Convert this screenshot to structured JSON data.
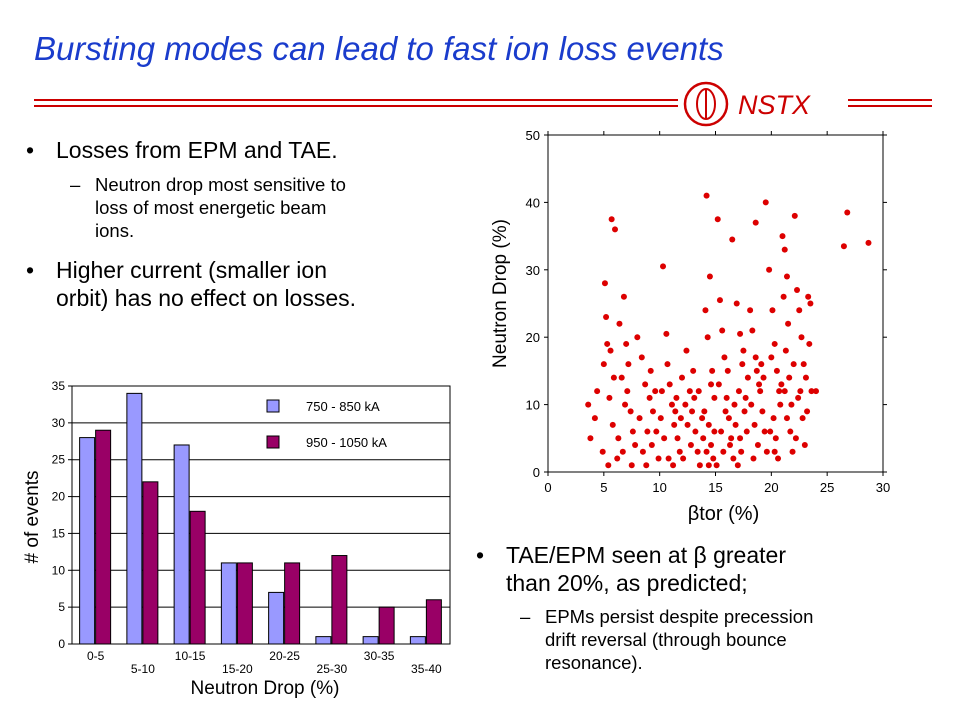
{
  "slide": {
    "title": "Bursting modes can lead to fast ion loss events",
    "logo_text": "NSTX",
    "colors": {
      "title": "#1a3ccc",
      "rule": "#cc0000",
      "series1": "#9999ff",
      "series2": "#990066",
      "scatter": "#dd0000"
    }
  },
  "bullets_top": [
    {
      "text": "Losses from EPM and TAE.",
      "sub": [
        "Neutron drop most sensitive to",
        "loss of most energetic beam",
        "ions."
      ]
    },
    {
      "text": "Higher current (smaller ion",
      "text2": "orbit) has no effect on losses."
    }
  ],
  "bullets_bottom": [
    {
      "text": "TAE/EPM seen at β greater",
      "text2": "than 20%, as predicted;",
      "sub": [
        "EPMs persist despite precession",
        "drift reversal (through bounce",
        "resonance)."
      ]
    }
  ],
  "chart_data": [
    {
      "type": "bar",
      "categories": [
        "0-5",
        "5-10",
        "10-15",
        "15-20",
        "20-25",
        "25-30",
        "30-35",
        "35-40"
      ],
      "series": [
        {
          "name": "750 - 850 kA",
          "values": [
            28,
            34,
            27,
            11,
            7,
            1,
            1,
            1
          ]
        },
        {
          "name": "950 - 1050 kA",
          "values": [
            29,
            22,
            18,
            11,
            11,
            12,
            5,
            6
          ]
        }
      ],
      "xlabel": "Neutron Drop (%)",
      "ylabel": "# of events",
      "ylim": [
        0,
        35
      ],
      "yticks": [
        0,
        5,
        10,
        15,
        20,
        25,
        30,
        35
      ],
      "grid": true,
      "legend": "top-right"
    },
    {
      "type": "scatter",
      "xlabel": "βtor (%)",
      "ylabel": "Neutron Drop (%)",
      "xlim": [
        0,
        30
      ],
      "ylim": [
        0,
        50
      ],
      "xticks": [
        0,
        5,
        10,
        15,
        20,
        25,
        30
      ],
      "yticks": [
        0,
        10,
        20,
        30,
        40,
        50
      ],
      "grid": false,
      "points": [
        [
          5.1,
          28
        ],
        [
          5.2,
          23
        ],
        [
          5.3,
          19
        ],
        [
          5.6,
          18
        ],
        [
          5.9,
          14
        ],
        [
          5.5,
          11
        ],
        [
          4.2,
          8
        ],
        [
          3.8,
          5
        ],
        [
          4.9,
          3
        ],
        [
          5.8,
          7
        ],
        [
          6.2,
          2
        ],
        [
          5.4,
          1
        ],
        [
          4.4,
          12
        ],
        [
          3.6,
          10
        ],
        [
          5.0,
          16
        ],
        [
          5.7,
          37.5
        ],
        [
          6.0,
          36
        ],
        [
          6.4,
          22
        ],
        [
          6.8,
          26
        ],
        [
          7.0,
          19
        ],
        [
          7.2,
          16
        ],
        [
          7.1,
          12
        ],
        [
          7.4,
          9
        ],
        [
          7.6,
          6
        ],
        [
          7.8,
          4
        ],
        [
          7.5,
          1
        ],
        [
          6.6,
          14
        ],
        [
          6.9,
          10
        ],
        [
          6.3,
          5
        ],
        [
          6.7,
          3
        ],
        [
          8.0,
          20
        ],
        [
          8.4,
          17
        ],
        [
          8.7,
          13
        ],
        [
          8.2,
          8
        ],
        [
          8.9,
          6
        ],
        [
          8.5,
          3
        ],
        [
          8.8,
          1
        ],
        [
          9.1,
          11
        ],
        [
          9.4,
          9
        ],
        [
          9.7,
          6
        ],
        [
          9.3,
          4
        ],
        [
          9.9,
          2
        ],
        [
          9.6,
          12
        ],
        [
          9.2,
          15
        ],
        [
          10.1,
          8
        ],
        [
          10.3,
          30.5
        ],
        [
          10.6,
          20.5
        ],
        [
          10.9,
          13
        ],
        [
          11.1,
          10
        ],
        [
          11.3,
          7
        ],
        [
          11.6,
          5
        ],
        [
          11.8,
          3
        ],
        [
          11.2,
          1
        ],
        [
          10.7,
          16
        ],
        [
          11.5,
          11
        ],
        [
          10.4,
          5
        ],
        [
          10.8,
          2
        ],
        [
          11.9,
          8
        ],
        [
          11.4,
          9
        ],
        [
          10.2,
          12
        ],
        [
          12.0,
          14
        ],
        [
          12.3,
          10
        ],
        [
          12.5,
          7
        ],
        [
          12.8,
          4
        ],
        [
          12.1,
          2
        ],
        [
          12.7,
          12
        ],
        [
          12.9,
          9
        ],
        [
          13.2,
          6
        ],
        [
          13.4,
          3
        ],
        [
          13.6,
          1
        ],
        [
          13.1,
          11
        ],
        [
          13.8,
          8
        ],
        [
          12.4,
          18
        ],
        [
          13.0,
          15
        ],
        [
          13.5,
          12
        ],
        [
          14.2,
          41
        ],
        [
          14.5,
          29
        ],
        [
          14.1,
          24
        ],
        [
          14.3,
          20
        ],
        [
          14.7,
          15
        ],
        [
          14.9,
          11
        ],
        [
          14.4,
          7
        ],
        [
          14.6,
          4
        ],
        [
          14.8,
          2
        ],
        [
          14.0,
          9
        ],
        [
          13.9,
          5
        ],
        [
          14.6,
          13
        ],
        [
          14.2,
          3
        ],
        [
          14.9,
          6
        ],
        [
          14.4,
          1
        ],
        [
          15.2,
          37.5
        ],
        [
          15.4,
          25.5
        ],
        [
          15.6,
          21
        ],
        [
          15.8,
          17
        ],
        [
          15.3,
          13
        ],
        [
          15.9,
          9
        ],
        [
          15.5,
          6
        ],
        [
          15.7,
          3
        ],
        [
          15.1,
          1
        ],
        [
          16.0,
          11
        ],
        [
          16.2,
          8
        ],
        [
          16.4,
          5
        ],
        [
          16.6,
          2
        ],
        [
          16.1,
          15
        ],
        [
          16.7,
          10
        ],
        [
          16.5,
          34.5
        ],
        [
          16.9,
          25
        ],
        [
          17.2,
          20.5
        ],
        [
          17.4,
          16
        ],
        [
          17.1,
          12
        ],
        [
          17.6,
          9
        ],
        [
          17.8,
          6
        ],
        [
          17.3,
          3
        ],
        [
          17.0,
          1
        ],
        [
          17.9,
          14
        ],
        [
          17.5,
          18
        ],
        [
          16.8,
          7
        ],
        [
          17.7,
          11
        ],
        [
          16.3,
          4
        ],
        [
          17.2,
          5
        ],
        [
          18.1,
          24
        ],
        [
          18.3,
          21
        ],
        [
          18.6,
          17
        ],
        [
          18.9,
          13
        ],
        [
          18.2,
          10
        ],
        [
          18.5,
          7
        ],
        [
          18.8,
          4
        ],
        [
          18.4,
          2
        ],
        [
          19.0,
          12
        ],
        [
          19.2,
          9
        ],
        [
          19.4,
          6
        ],
        [
          19.6,
          3
        ],
        [
          19.1,
          16
        ],
        [
          19.3,
          14
        ],
        [
          18.7,
          15
        ],
        [
          18.6,
          37
        ],
        [
          19.5,
          40
        ],
        [
          19.8,
          30
        ],
        [
          20.1,
          24
        ],
        [
          20.3,
          19
        ],
        [
          20.5,
          15
        ],
        [
          20.7,
          12
        ],
        [
          20.2,
          8
        ],
        [
          20.4,
          5
        ],
        [
          20.6,
          2
        ],
        [
          20.8,
          10
        ],
        [
          20.0,
          17
        ],
        [
          19.9,
          6
        ],
        [
          20.9,
          13
        ],
        [
          20.3,
          3
        ],
        [
          21.0,
          35
        ],
        [
          21.2,
          33
        ],
        [
          21.4,
          29
        ],
        [
          21.1,
          26
        ],
        [
          21.5,
          22
        ],
        [
          21.3,
          18
        ],
        [
          21.6,
          14
        ],
        [
          21.8,
          10
        ],
        [
          21.7,
          6
        ],
        [
          21.9,
          3
        ],
        [
          21.2,
          12
        ],
        [
          21.4,
          8
        ],
        [
          22.0,
          16
        ],
        [
          22.2,
          5
        ],
        [
          22.4,
          11
        ],
        [
          22.1,
          38
        ],
        [
          22.3,
          27
        ],
        [
          22.5,
          24
        ],
        [
          22.7,
          20
        ],
        [
          22.9,
          16
        ],
        [
          22.6,
          12
        ],
        [
          22.8,
          8
        ],
        [
          23.0,
          4
        ],
        [
          23.2,
          9
        ],
        [
          23.1,
          14
        ],
        [
          23.4,
          19
        ],
        [
          23.5,
          25
        ],
        [
          23.3,
          26
        ],
        [
          23.6,
          12
        ],
        [
          24.0,
          12
        ],
        [
          26.8,
          38.5
        ],
        [
          26.5,
          33.5
        ],
        [
          28.7,
          34
        ]
      ]
    }
  ]
}
